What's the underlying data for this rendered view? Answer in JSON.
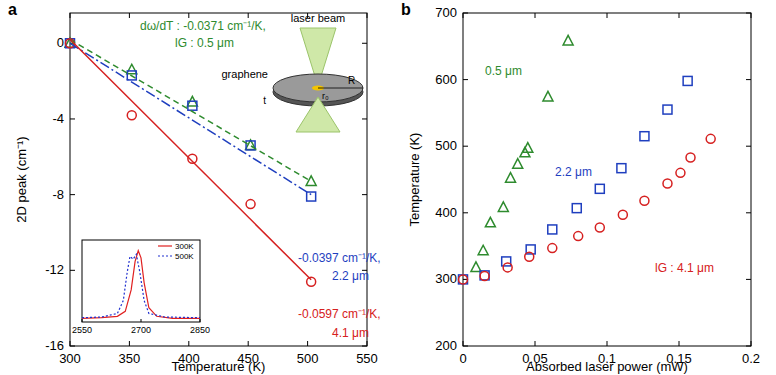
{
  "chart_data": [
    {
      "type": "scatter",
      "title": "a",
      "x_label": "Temperature (K)",
      "y_label": "2D peak (cm⁻¹)",
      "xlim": [
        300,
        550
      ],
      "xticks": [
        300,
        350,
        400,
        450,
        500,
        550
      ],
      "ylim": [
        -16,
        1.6
      ],
      "yticks": [
        0,
        -4,
        -8,
        -12,
        -16
      ],
      "series": [
        {
          "color": "#2e8b2e",
          "marker": "triangle",
          "x": [
            300,
            352,
            403,
            452,
            503
          ],
          "values": [
            0,
            -1.4,
            -3.1,
            -5.4,
            -7.3
          ]
        },
        {
          "color": "#1f3fbf",
          "marker": "square",
          "x": [
            300,
            352,
            403,
            452,
            503
          ],
          "values": [
            0,
            -1.7,
            -3.3,
            -5.4,
            -8.1
          ]
        },
        {
          "color": "#d62020",
          "marker": "circle",
          "x": [
            300,
            352,
            403,
            452,
            503
          ],
          "values": [
            0,
            -3.8,
            -6.1,
            -8.5,
            -12.6
          ]
        },
        {
          "type": "line",
          "color": "#2e8b2e",
          "line_style": "dashed",
          "x": [
            300,
            503
          ],
          "values": [
            0.2,
            -7.3
          ]
        },
        {
          "type": "line",
          "color": "#1f3fbf",
          "line_style": "dashdot",
          "x": [
            300,
            503
          ],
          "values": [
            0,
            -8.0
          ]
        },
        {
          "type": "line",
          "color": "#d62020",
          "line_style": "solid",
          "x": [
            300,
            503
          ],
          "values": [
            0.2,
            -12.5
          ]
        }
      ],
      "annotations": [
        {
          "text": "dω/dT : -0.0371 cm⁻¹/K,",
          "color": "#2e8b2e"
        },
        {
          "text": "lG : 0.5 μm",
          "color": "#2e8b2e"
        },
        {
          "text": "-0.0397 cm⁻¹/K,",
          "color": "#1f3fbf"
        },
        {
          "text": "2.2 μm",
          "color": "#1f3fbf"
        },
        {
          "text": "-0.0597 cm⁻¹/K,",
          "color": "#d62020"
        },
        {
          "text": "4.1 μm",
          "color": "#d62020"
        }
      ]
    },
    {
      "type": "line",
      "xlim": [
        2550,
        2850
      ],
      "xticks": [
        2550,
        2700,
        2850
      ],
      "ylim": [
        0,
        1.15
      ],
      "tick_labels": "x",
      "legend": "upper right",
      "series": [
        {
          "name": "300K",
          "color": "#e02020",
          "line_style": "solid",
          "x": [
            2550,
            2600,
            2640,
            2660,
            2675,
            2685,
            2693,
            2700,
            2708,
            2720,
            2740,
            2780,
            2850
          ],
          "values": [
            0.05,
            0.06,
            0.08,
            0.15,
            0.45,
            0.85,
            1.0,
            0.9,
            0.55,
            0.2,
            0.08,
            0.05,
            0.05
          ]
        },
        {
          "name": "500K",
          "color": "#2030d0",
          "line_style": "dotted",
          "x": [
            2550,
            2600,
            2640,
            2655,
            2665,
            2672,
            2680,
            2688,
            2697,
            2708,
            2720,
            2760,
            2850
          ],
          "values": [
            0.06,
            0.07,
            0.12,
            0.3,
            0.7,
            0.92,
            0.88,
            0.95,
            0.7,
            0.3,
            0.12,
            0.07,
            0.06
          ]
        }
      ]
    },
    {
      "type": "scatter",
      "title": "b",
      "x_label": "Absorbed laser power (mW)",
      "y_label": "Temperature (K)",
      "xlim": [
        0,
        0.2
      ],
      "xticks": [
        0,
        0.05,
        0.1,
        0.15,
        0.2
      ],
      "ylim": [
        200,
        700
      ],
      "yticks": [
        200,
        300,
        400,
        500,
        600,
        700
      ],
      "series": [
        {
          "color": "#2e8b2e",
          "marker": "triangle",
          "x": [
            0.009,
            0.014,
            0.019,
            0.028,
            0.033,
            0.038,
            0.043,
            0.045,
            0.059,
            0.073
          ],
          "values": [
            318,
            343,
            385,
            408,
            452,
            473,
            490,
            497,
            574,
            658
          ]
        },
        {
          "color": "#1f3fbf",
          "marker": "square",
          "x": [
            0,
            0.015,
            0.03,
            0.047,
            0.062,
            0.079,
            0.095,
            0.11,
            0.126,
            0.142,
            0.156
          ],
          "values": [
            300,
            306,
            327,
            345,
            375,
            407,
            436,
            467,
            515,
            555,
            598
          ]
        },
        {
          "color": "#d62020",
          "marker": "circle",
          "x": [
            0,
            0.015,
            0.031,
            0.046,
            0.062,
            0.08,
            0.095,
            0.111,
            0.126,
            0.142,
            0.151,
            0.158,
            0.172
          ],
          "values": [
            300,
            305,
            318,
            334,
            347,
            365,
            378,
            397,
            418,
            444,
            460,
            483,
            511
          ]
        }
      ],
      "annotations": [
        {
          "text": "0.5 μm",
          "color": "#2e8b2e"
        },
        {
          "text": "2.2 μm",
          "color": "#1f3fbf"
        },
        {
          "text": "lG : 4.1 μm",
          "color": "#d62020"
        }
      ]
    }
  ],
  "diagram": {
    "labels": [
      "laser beam",
      "graphene",
      "r₀",
      "R",
      "t"
    ]
  }
}
